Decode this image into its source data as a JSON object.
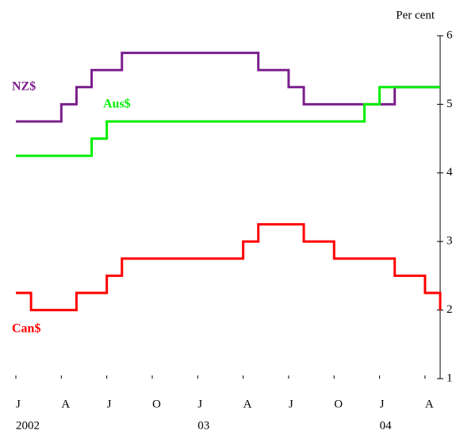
{
  "chart_data": {
    "type": "line",
    "step": true,
    "y_axis_label": "Per cent",
    "x": [
      "2002-01",
      "2002-02",
      "2002-03",
      "2002-04",
      "2002-05",
      "2002-06",
      "2002-07",
      "2002-08",
      "2002-09",
      "2002-10",
      "2002-11",
      "2002-12",
      "2003-01",
      "2003-02",
      "2003-03",
      "2003-04",
      "2003-05",
      "2003-06",
      "2003-07",
      "2003-08",
      "2003-09",
      "2003-10",
      "2003-11",
      "2003-12",
      "2004-01",
      "2004-02",
      "2004-03",
      "2004-04",
      "2004-05"
    ],
    "series": [
      {
        "name": "NZ$",
        "color": "#7b1f8c",
        "values": [
          4.75,
          4.75,
          4.75,
          5.0,
          5.25,
          5.5,
          5.5,
          5.75,
          5.75,
          5.75,
          5.75,
          5.75,
          5.75,
          5.75,
          5.75,
          5.75,
          5.5,
          5.5,
          5.25,
          5.0,
          5.0,
          5.0,
          5.0,
          5.0,
          5.0,
          5.25,
          5.25,
          5.25,
          5.25
        ]
      },
      {
        "name": "Aus$",
        "color": "#00ee00",
        "values": [
          4.25,
          4.25,
          4.25,
          4.25,
          4.25,
          4.5,
          4.75,
          4.75,
          4.75,
          4.75,
          4.75,
          4.75,
          4.75,
          4.75,
          4.75,
          4.75,
          4.75,
          4.75,
          4.75,
          4.75,
          4.75,
          4.75,
          4.75,
          5.0,
          5.25,
          5.25,
          5.25,
          5.25,
          5.25
        ]
      },
      {
        "name": "Can$",
        "color": "#ff0000",
        "values": [
          2.25,
          2.0,
          2.0,
          2.0,
          2.25,
          2.25,
          2.5,
          2.75,
          2.75,
          2.75,
          2.75,
          2.75,
          2.75,
          2.75,
          2.75,
          3.0,
          3.25,
          3.25,
          3.25,
          3.0,
          3.0,
          2.75,
          2.75,
          2.75,
          2.75,
          2.5,
          2.5,
          2.25,
          2.0
        ]
      }
    ],
    "xlim": [
      "2002-01",
      "2004-05"
    ],
    "xticks": [
      {
        "value": "2002-01",
        "label": "J"
      },
      {
        "value": "2002-04",
        "label": "A"
      },
      {
        "value": "2002-07",
        "label": "J"
      },
      {
        "value": "2002-10",
        "label": "O"
      },
      {
        "value": "2003-01",
        "label": "J"
      },
      {
        "value": "2003-04",
        "label": "A"
      },
      {
        "value": "2003-07",
        "label": "J"
      },
      {
        "value": "2003-10",
        "label": "O"
      },
      {
        "value": "2004-01",
        "label": "J"
      },
      {
        "value": "2004-04",
        "label": "A"
      }
    ],
    "xtick_years": [
      {
        "value": "2002-01",
        "label": "2002"
      },
      {
        "value": "2003-01",
        "label": "03"
      },
      {
        "value": "2004-01",
        "label": "04"
      }
    ],
    "ylim": [
      1,
      6
    ],
    "yticks": [
      1,
      2,
      3,
      4,
      5,
      6
    ],
    "y_axis_side": "right"
  }
}
